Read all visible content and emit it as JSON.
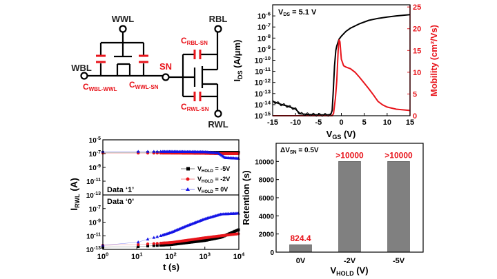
{
  "circuit": {
    "nodes": {
      "wwl": "WWL",
      "wbl": "WBL",
      "sn": "SN",
      "rbl": "RBL",
      "rwl": "RWL"
    },
    "caps": {
      "wbl_wwl": {
        "main": "C",
        "sub": "WBL-WWL"
      },
      "wwl_sn": {
        "main": "C",
        "sub": "WWL-SN"
      },
      "rbl_sn": {
        "main": "C",
        "sub": "RBL-SN"
      },
      "rwl_sn": {
        "main": "C",
        "sub": "RWL-SN"
      }
    },
    "colors": {
      "wire": "#000000",
      "cap": "#e8141b"
    }
  },
  "chart_data": [
    {
      "type": "line",
      "annotation": {
        "main": "V",
        "sub": "DS",
        "rest": " = 5.1 V"
      },
      "xlabel": {
        "main": "V",
        "sub": "GS",
        "rest": " (V)"
      },
      "ylabel": {
        "main": "I",
        "sub": "DS",
        "rest": " (A/μm)"
      },
      "y2label": "Mobility (cm²/Vs)",
      "xlim": [
        -15,
        15
      ],
      "ylim_log": [
        1e-15,
        1e-05
      ],
      "y2lim": [
        0,
        25.5
      ],
      "xticks": [
        "-15",
        "-10",
        "-5",
        "0",
        "5",
        "10",
        "15"
      ],
      "yticks_exp": [
        "-15",
        "-14",
        "-13",
        "-12",
        "-11",
        "-10",
        "-9",
        "-8",
        "-7",
        "-6"
      ],
      "y2ticks": [
        "0",
        "5",
        "10",
        "15",
        "20",
        "25"
      ],
      "series": [
        {
          "axis": "left",
          "color": "#000000",
          "x": [
            -15,
            -13,
            -12,
            -10,
            -9,
            -7,
            -5,
            -3,
            -2.3,
            -2,
            -1.8,
            -1.5,
            -1.2,
            -1,
            -0.5,
            0,
            1,
            2,
            4,
            6,
            8,
            10,
            12,
            15
          ],
          "y": [
            2e-14,
            1e-14,
            8e-15,
            4e-15,
            1.5e-15,
            1.3e-15,
            1.2e-15,
            1.2e-15,
            1.3e-15,
            3e-15,
            1e-13,
            3e-11,
            8e-10,
            2e-09,
            8e-09,
            1.5e-08,
            4e-08,
            8e-08,
            2e-07,
            4e-07,
            6e-07,
            8e-07,
            1e-06,
            1.3e-06
          ]
        },
        {
          "axis": "right",
          "color": "#e8141b",
          "x": [
            -15,
            -2,
            -1.7,
            -1.3,
            -1,
            -0.7,
            -0.5,
            -0.3,
            0,
            0.5,
            1,
            2,
            3,
            4,
            5,
            6,
            7,
            8,
            9,
            10,
            12,
            15
          ],
          "y": [
            0,
            0,
            0.5,
            4,
            8,
            15,
            17.5,
            17,
            13,
            11.5,
            11.2,
            10.8,
            10,
            8.8,
            7.5,
            6.2,
            4.8,
            3.3,
            2.5,
            2,
            1.5,
            1.2
          ]
        }
      ]
    },
    {
      "type": "scatter",
      "xlabel": "t (s)",
      "ylabel": {
        "main": "I",
        "sub": "RWL",
        "rest": " (A)"
      },
      "xlim_log": [
        1,
        10000
      ],
      "xticks_exp": [
        "0",
        "1",
        "2",
        "3",
        "4"
      ],
      "panels": [
        {
          "label": "Data ‘1’",
          "ylim_log": [
            1e-13,
            1e-05
          ],
          "yticks_exp": [
            "-5",
            "-7",
            "-9",
            "-11",
            "-13"
          ],
          "series": [
            {
              "name": "V_HOLD = -5V",
              "color": "#000000",
              "marker": "square",
              "t": [
                1,
                10,
                100,
                1000,
                3000,
                10000
              ],
              "y": [
                1.5e-07,
                1.5e-07,
                1.5e-07,
                1.5e-07,
                1.5e-07,
                1.5e-07
              ]
            },
            {
              "name": "V_HOLD = -2V",
              "color": "#e8141b",
              "marker": "circle",
              "t": [
                1,
                10,
                100,
                1000,
                3000,
                10000
              ],
              "y": [
                1.2e-07,
                1.2e-07,
                1.2e-07,
                1.1e-07,
                1e-07,
                1e-07
              ]
            },
            {
              "name": "V_HOLD = 0V",
              "color": "#1414e6",
              "marker": "triangle",
              "t": [
                1,
                10,
                100,
                1000,
                2500,
                4000,
                10000
              ],
              "y": [
                2e-07,
                2e-07,
                2e-07,
                1.8e-07,
                1.2e-07,
                2.5e-08,
                2e-08
              ]
            }
          ]
        },
        {
          "label": "Data ‘0’",
          "ylim_log": [
            1e-13,
            1e-05
          ],
          "yticks_exp": [
            "-7",
            "-9",
            "-11",
            "-13"
          ],
          "series": [
            {
              "name": "V_HOLD = -5V",
              "color": "#000000",
              "marker": "square",
              "t": [
                1,
                10,
                100,
                1000,
                3000,
                10000
              ],
              "y": [
                2e-13,
                2.5e-13,
                5e-13,
                2e-12,
                6e-12,
                8e-11
              ]
            },
            {
              "name": "V_HOLD = -2V",
              "color": "#e8141b",
              "marker": "circle",
              "t": [
                1,
                10,
                100,
                1000,
                3000,
                10000
              ],
              "y": [
                4e-13,
                5e-13,
                1e-12,
                5e-12,
                1e-11,
                2e-11
              ]
            },
            {
              "name": "V_HOLD = 0V",
              "color": "#1414e6",
              "marker": "triangle",
              "t": [
                1,
                10,
                20,
                50,
                100,
                300,
                1000,
                3000,
                10000
              ],
              "y": [
                4e-13,
                1e-12,
                3e-12,
                1e-11,
                3e-11,
                3e-10,
                3e-09,
                1.5e-08,
                2e-08
              ]
            }
          ]
        }
      ],
      "legend": {
        "position": "right",
        "entries": [
          {
            "main": "V",
            "sub": "HOLD",
            "rest": " = -5V"
          },
          {
            "main": "V",
            "sub": "HOLD",
            "rest": " = -2V"
          },
          {
            "main": "V",
            "sub": "HOLD",
            "rest": " = 0V"
          }
        ]
      }
    },
    {
      "type": "bar",
      "annotation": {
        "main": "ΔV",
        "sub": "SN",
        "rest": " = 0.5V"
      },
      "categories": [
        "0V",
        "-2V",
        "-5V"
      ],
      "values": [
        824.4,
        10000,
        10000
      ],
      "data_labels": [
        "824.4",
        ">10000",
        ">10000"
      ],
      "xlabel": {
        "main": "V",
        "sub": "HOLD",
        "rest": " (V)"
      },
      "ylabel": "Retention (s)",
      "ylim": [
        0,
        12000
      ],
      "yticks": [
        "0",
        "2000",
        "4000",
        "6000",
        "8000",
        "10000"
      ],
      "bar_color": "#808080",
      "label_color": "#e8141b"
    }
  ]
}
